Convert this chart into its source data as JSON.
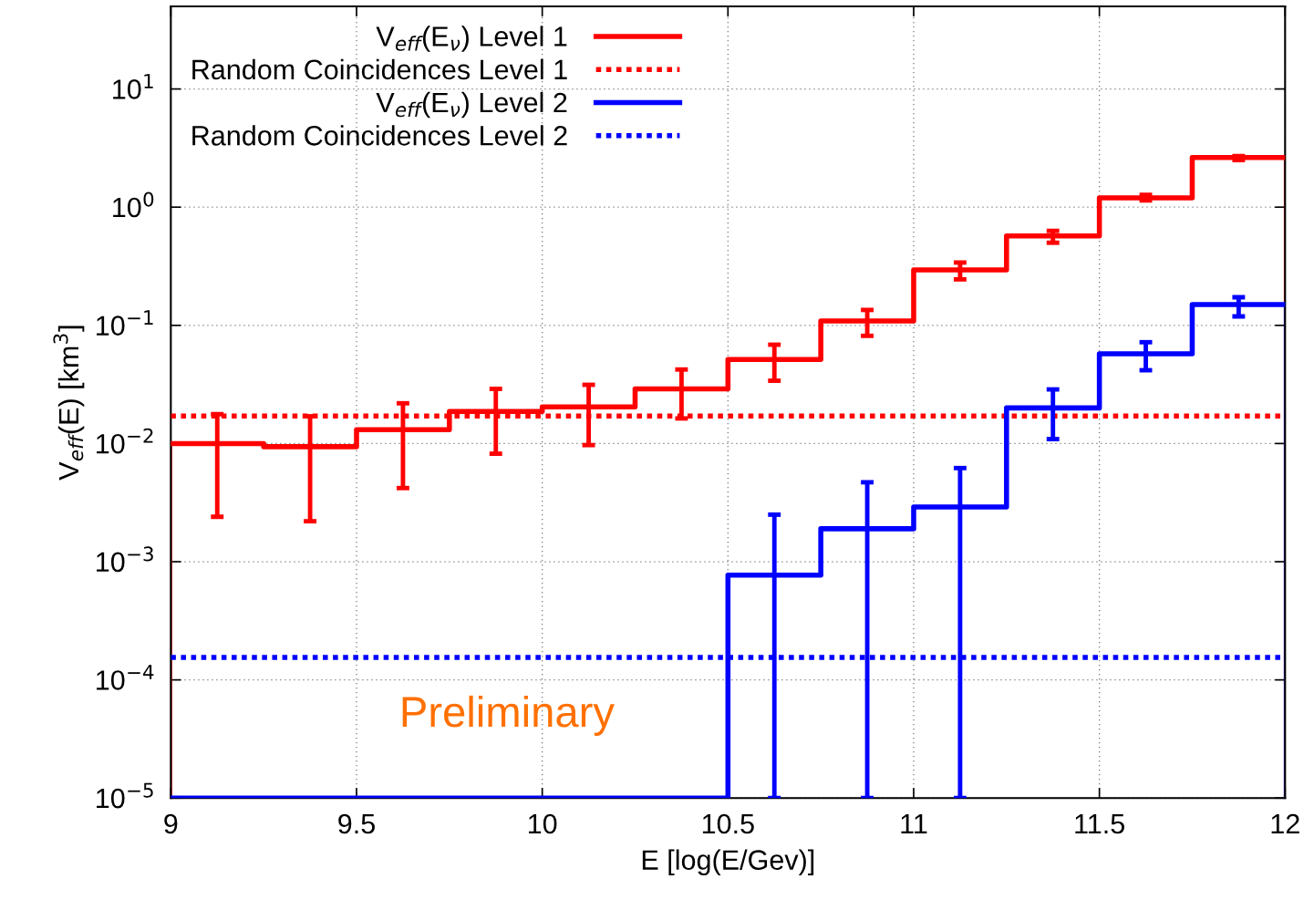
{
  "chart_data": {
    "type": "step",
    "xlabel": "E [log(E/Gev)]",
    "ylabel": "V$_{eff}$(E) [km$^{3}$]",
    "log": "y",
    "grid": true,
    "legend": "top left",
    "xlim": [
      9,
      12
    ],
    "ylim": [
      1e-05,
      50
    ],
    "xticks": [
      9,
      9.5,
      10,
      10.5,
      11,
      11.5,
      12
    ],
    "yticks": [
      {
        "value": 1e-05,
        "label": "10$^{−5}$"
      },
      {
        "value": 0.0001,
        "label": "10$^{−4}$"
      },
      {
        "value": 0.001,
        "label": "10$^{−3}$"
      },
      {
        "value": 0.01,
        "label": "10$^{−2}$"
      },
      {
        "value": 0.1,
        "label": "10$^{−1}$"
      },
      {
        "value": 1,
        "label": "10$^{0}$"
      },
      {
        "value": 10,
        "label": "10$^{1}$"
      }
    ],
    "annotations": [
      "Preliminary"
    ],
    "series": [
      {
        "name": "V$_{eff}$(E$_{ν}$) Level 1",
        "color": "#ff0000",
        "line_style": "solid",
        "x": [
          9,
          9.125,
          9.375,
          9.625,
          9.875,
          10.125,
          10.375,
          10.625,
          10.875,
          11.125,
          11.375,
          11.625,
          11.875,
          12
        ],
        "values": [
          0.01,
          0.01,
          0.0094,
          0.0131,
          0.0187,
          0.0204,
          0.029,
          0.0515,
          0.109,
          0.295,
          0.57,
          1.2,
          2.63,
          2.63
        ],
        "errors": [
          null,
          [
            0.0024,
            0.0177
          ],
          [
            0.0022,
            0.017
          ],
          [
            0.0042,
            0.0219
          ],
          [
            0.0082,
            0.029
          ],
          [
            0.0097,
            0.0314
          ],
          [
            0.0163,
            0.0423
          ],
          [
            0.034,
            0.0686
          ],
          [
            0.0815,
            0.135
          ],
          [
            0.245,
            0.34
          ],
          [
            0.5,
            0.63
          ],
          [
            1.14,
            1.27
          ],
          [
            2.5,
            2.7
          ],
          null
        ]
      },
      {
        "name": "Random Coincidences Level 1",
        "color": "#ff0000",
        "type": "line",
        "line_style": "dotted",
        "x": [
          9,
          12
        ],
        "values": [
          0.0171,
          0.0171
        ]
      },
      {
        "name": "V$_{eff}$(E$_{ν}$) Level 2",
        "color": "#0000ff",
        "line_style": "solid",
        "x": [
          9,
          9.125,
          9.375,
          9.625,
          9.875,
          10.125,
          10.375,
          10.625,
          10.875,
          11.125,
          11.375,
          11.625,
          11.875,
          12
        ],
        "values": [
          1e-05,
          1e-05,
          1e-05,
          1e-05,
          1e-05,
          1e-05,
          1e-05,
          0.00077,
          0.0019,
          0.0029,
          0.02,
          0.0574,
          0.15,
          0.15
        ],
        "errors": [
          null,
          null,
          null,
          null,
          null,
          null,
          null,
          [
            1e-05,
            0.0025
          ],
          [
            1e-05,
            0.0047
          ],
          [
            1e-05,
            0.0062
          ],
          [
            0.0109,
            0.0287
          ],
          [
            0.0417,
            0.072
          ],
          [
            0.119,
            0.173
          ],
          null
        ]
      },
      {
        "name": "Random Coincidences Level 2",
        "color": "#0000ff",
        "type": "line",
        "line_style": "dotted",
        "x": [
          9,
          12
        ],
        "values": [
          0.000155,
          0.000155
        ]
      }
    ]
  }
}
